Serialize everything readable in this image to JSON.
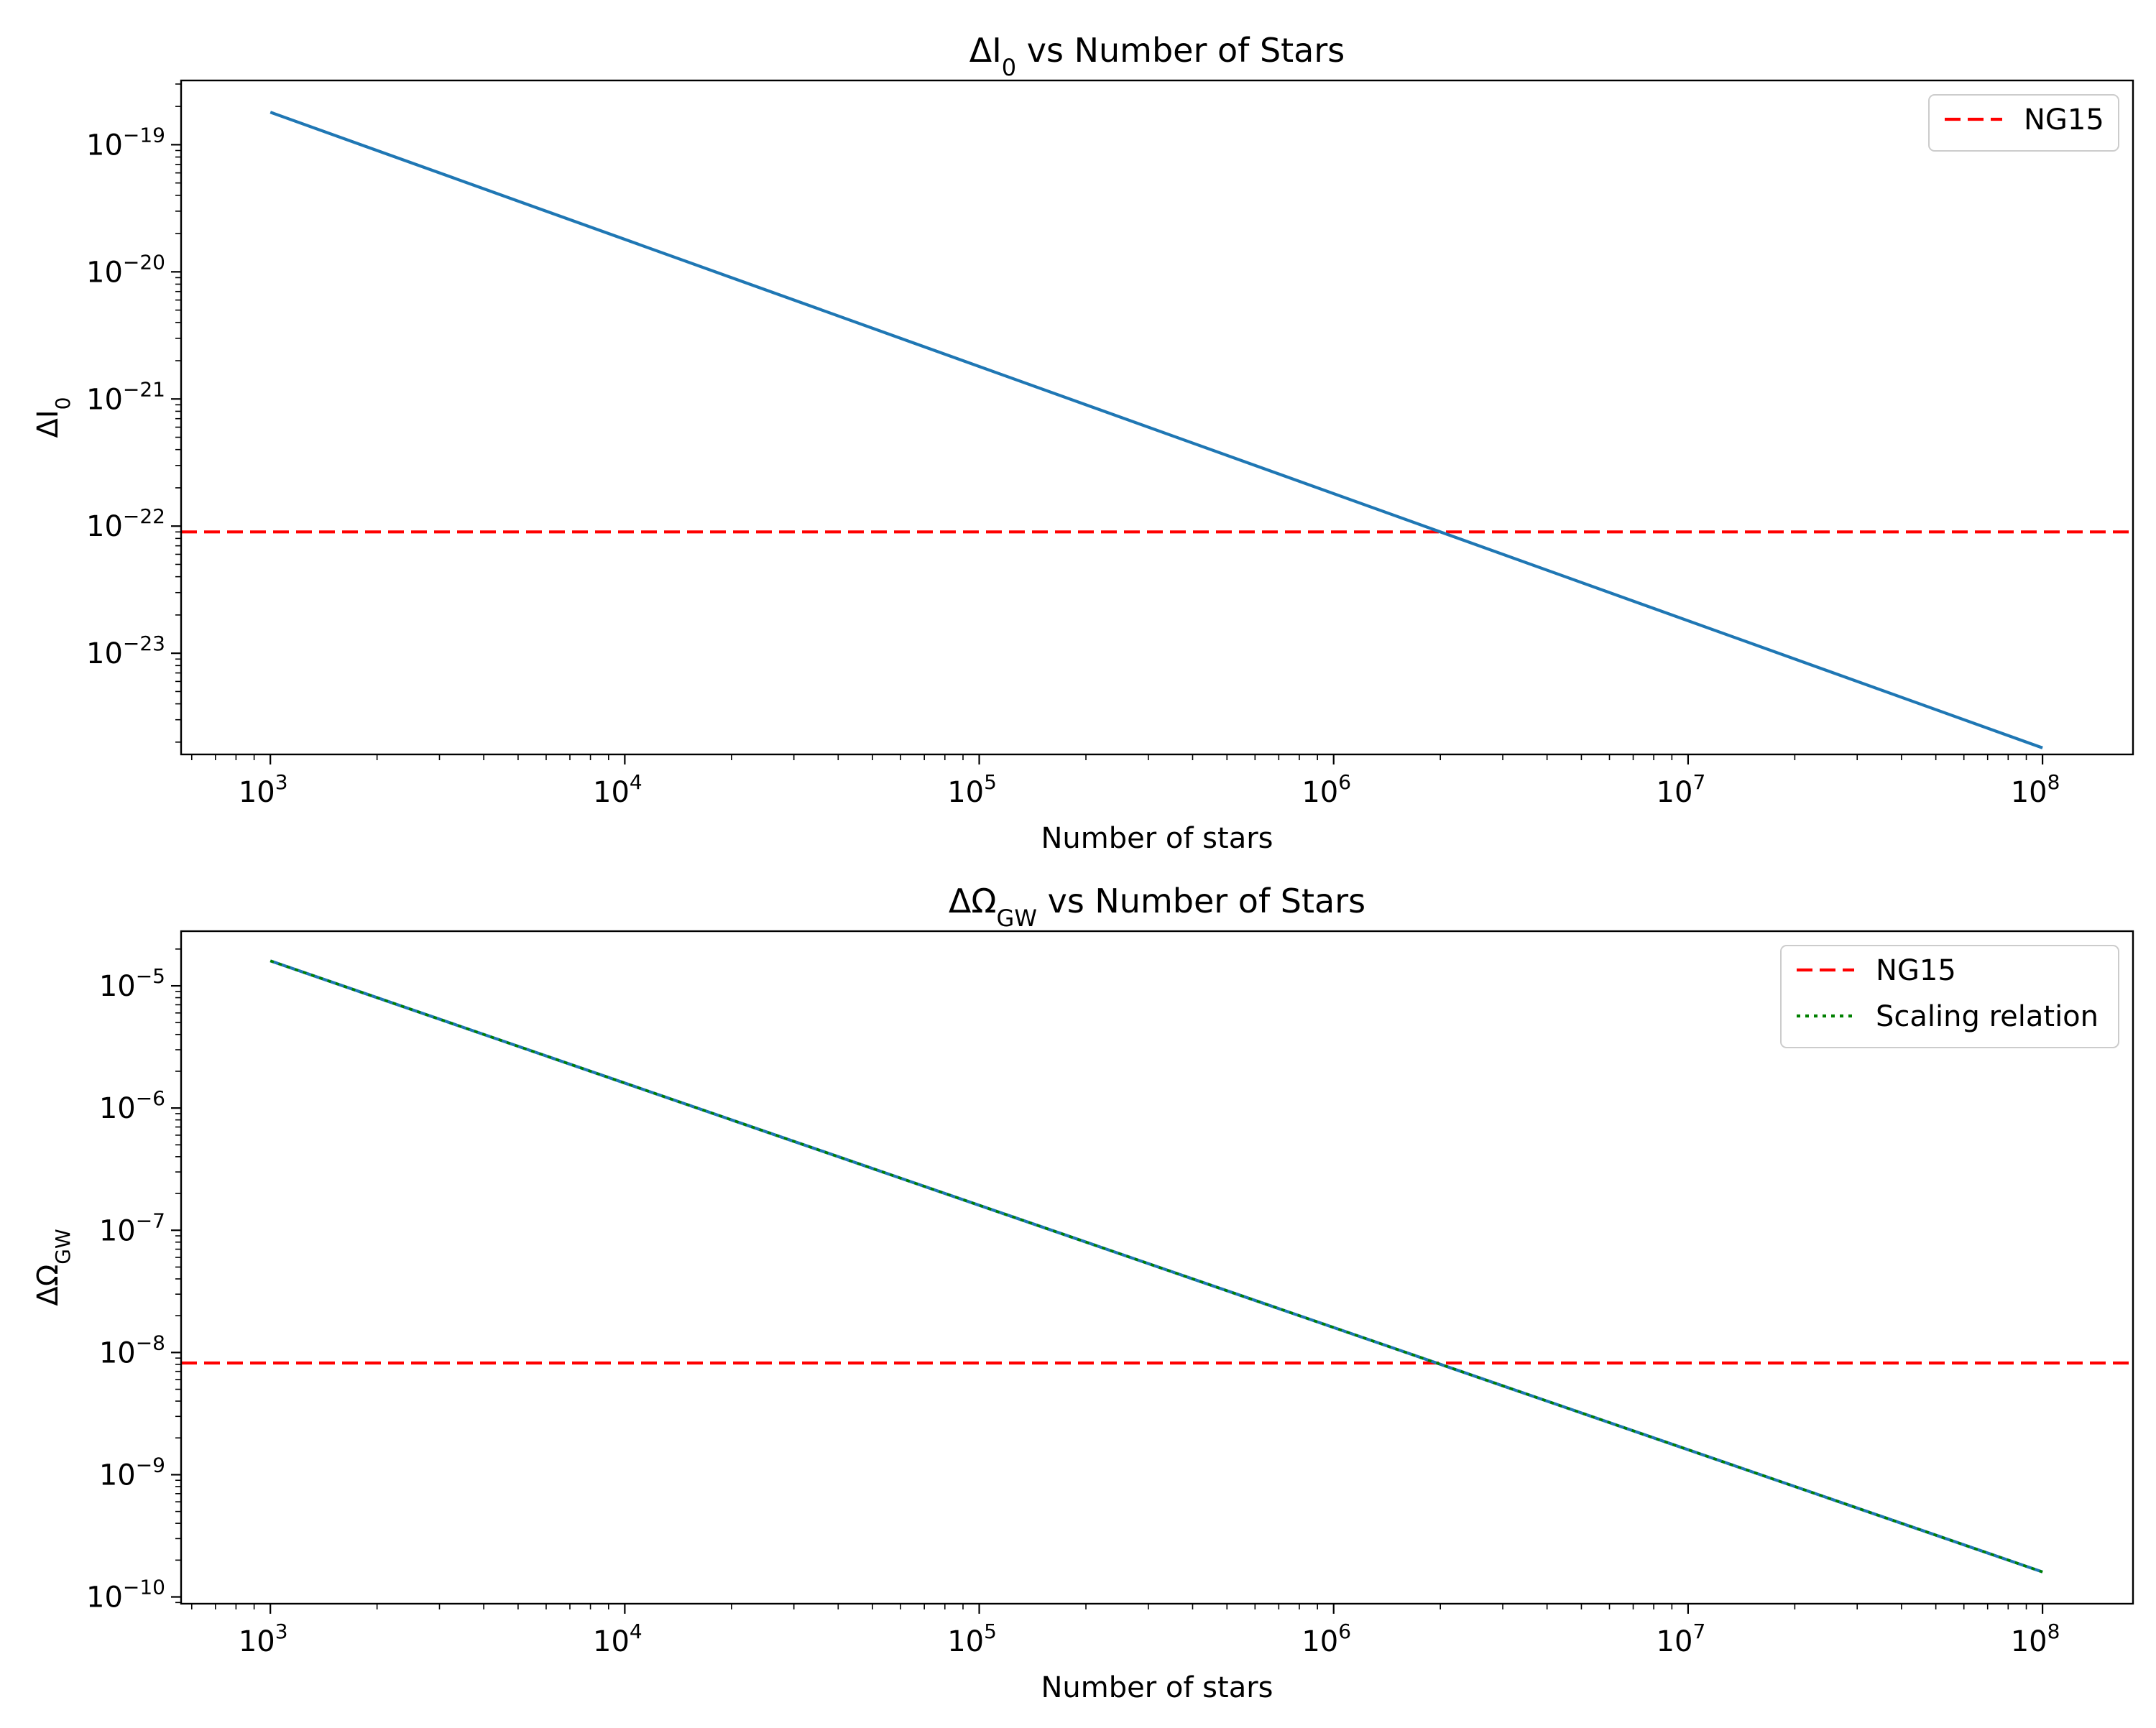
{
  "chart_data": [
    {
      "type": "line",
      "title": {
        "prefix": "ΔI",
        "sub": "0",
        "rest": " vs Number of Stars"
      },
      "xlabel": "Number of stars",
      "ylabel": {
        "prefix": "ΔI",
        "sub": "0"
      },
      "xscale": "log",
      "yscale": "log",
      "xlim": [
        560,
        180000000
      ],
      "ylim": [
        1.6e-24,
        3.2e-19
      ],
      "x_ticks": [
        3,
        4,
        5,
        6,
        7,
        8
      ],
      "y_ticks": [
        -19,
        -20,
        -21,
        -22,
        -23
      ],
      "series": [
        {
          "name": "",
          "x": [
            1000,
            100000000
          ],
          "y": [
            1.8e-19,
            1.8e-24
          ],
          "color": "#1f77b4",
          "style": "solid"
        }
      ],
      "hlines": [
        {
          "name": "NG15",
          "y": 9e-23,
          "color": "#ff0000",
          "style": "dashed"
        }
      ],
      "legend": {
        "position": "upper right",
        "entries": [
          "NG15"
        ]
      }
    },
    {
      "type": "line",
      "title": {
        "prefix": "ΔΩ",
        "sub": "GW",
        "rest": " vs Number of Stars"
      },
      "xlabel": "Number of stars",
      "ylabel": {
        "prefix": "ΔΩ",
        "sub": "GW"
      },
      "xscale": "log",
      "yscale": "log",
      "xlim": [
        560,
        180000000
      ],
      "ylim": [
        8.8e-11,
        2.8e-05
      ],
      "x_ticks": [
        3,
        4,
        5,
        6,
        7,
        8
      ],
      "y_ticks": [
        -5,
        -6,
        -7,
        -8,
        -9,
        -10
      ],
      "series": [
        {
          "name": "",
          "x": [
            1000,
            100000000
          ],
          "y": [
            1.6e-05,
            1.6e-10
          ],
          "color": "#1f77b4",
          "style": "solid"
        },
        {
          "name": "Scaling relation",
          "x": [
            1000,
            100000000
          ],
          "y": [
            1.6e-05,
            1.6e-10
          ],
          "color": "#008000",
          "style": "dotted"
        }
      ],
      "hlines": [
        {
          "name": "NG15",
          "y": 8.2e-09,
          "color": "#ff0000",
          "style": "dashed"
        }
      ],
      "legend": {
        "position": "upper right",
        "entries": [
          "NG15",
          "Scaling relation"
        ]
      }
    }
  ]
}
